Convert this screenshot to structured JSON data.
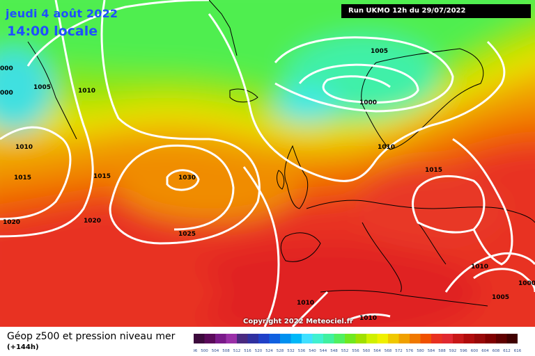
{
  "header": {
    "date": "jeudi 4 août 2022",
    "time": "14:00 locale",
    "run": "Run UKMO 12h du 29/07/2022"
  },
  "copyright": "Copyright 2022 Meteociel.fr",
  "footer": {
    "title": "Géop z500 et pression niveau mer",
    "subtitle": "(+144h)"
  },
  "legend": {
    "values": [
      "496",
      "500",
      "504",
      "508",
      "512",
      "516",
      "520",
      "524",
      "528",
      "532",
      "536",
      "540",
      "544",
      "548",
      "552",
      "556",
      "560",
      "564",
      "568",
      "572",
      "576",
      "580",
      "584",
      "588",
      "592",
      "596",
      "600",
      "604",
      "608",
      "612",
      "616"
    ],
    "colors": [
      "#3c0a3c",
      "#5a0a5a",
      "#7a1a8a",
      "#9a30a8",
      "#4a2a80",
      "#3030a0",
      "#2040c8",
      "#1060e0",
      "#0090f0",
      "#00b8f8",
      "#40e0ff",
      "#40f0d0",
      "#40f0a0",
      "#50f060",
      "#70e820",
      "#a0e000",
      "#d0f000",
      "#f0f000",
      "#f0c800",
      "#f0a000",
      "#f07800",
      "#f05000",
      "#e83020",
      "#e02830",
      "#c81818",
      "#b00c0c",
      "#980808",
      "#800000",
      "#600000",
      "#400000"
    ]
  },
  "isobar_labels": [
    {
      "text": "1005"
    },
    {
      "text": "1010"
    },
    {
      "text": "1010"
    },
    {
      "text": "1015"
    },
    {
      "text": "1020"
    },
    {
      "text": "1020"
    },
    {
      "text": "1030"
    },
    {
      "text": "1025"
    },
    {
      "text": "1005"
    },
    {
      "text": "1000"
    },
    {
      "text": "1010"
    },
    {
      "text": "1015"
    },
    {
      "text": "1010"
    },
    {
      "text": "1005"
    },
    {
      "text": "1000"
    },
    {
      "text": "1010"
    },
    {
      "text": "1010"
    },
    {
      "text": "1015"
    },
    {
      "text": "000"
    },
    {
      "text": "000"
    }
  ]
}
